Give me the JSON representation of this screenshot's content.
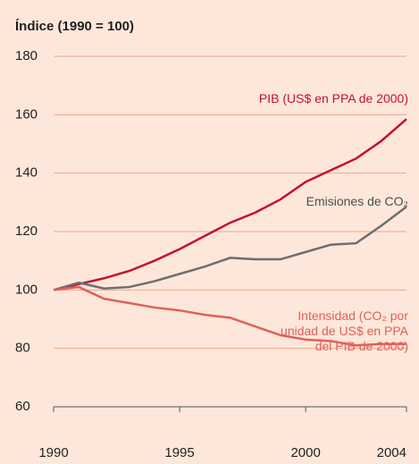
{
  "chart_data": {
    "type": "line",
    "title": "Índice (1990 = 100)",
    "x": [
      1990,
      1991,
      1992,
      1993,
      1994,
      1995,
      1996,
      1997,
      1998,
      1999,
      2000,
      2001,
      2002,
      2003,
      2004
    ],
    "series": [
      {
        "name": "PIB (US$ en PPA de 2000)",
        "color": "#c8102e",
        "values": [
          100,
          102,
          104,
          106.5,
          110,
          114,
          118.5,
          123,
          126.5,
          131,
          137,
          141,
          145,
          151,
          158.5
        ]
      },
      {
        "name": "Emisiones de CO₂",
        "color": "#6d6e71",
        "values": [
          100,
          102.5,
          100.5,
          101,
          103,
          105.5,
          108,
          111,
          110.5,
          110.5,
          113,
          115.5,
          116,
          122,
          128.5
        ]
      },
      {
        "name": "Intensidad (CO₂ por unidad de US$ en PPA del PIB de 2000)",
        "color": "#e0605a",
        "values": [
          100,
          101,
          97,
          95.5,
          94,
          93,
          91.5,
          90.5,
          87.5,
          84.5,
          83,
          82.5,
          81,
          81.5,
          81.5
        ]
      }
    ],
    "xlim": [
      1990,
      2004
    ],
    "xticks": [
      1990,
      1995,
      2000,
      2004
    ],
    "ylim": [
      60,
      180
    ],
    "yticks": [
      60,
      80,
      100,
      120,
      140,
      160,
      180
    ],
    "grid": true
  }
}
